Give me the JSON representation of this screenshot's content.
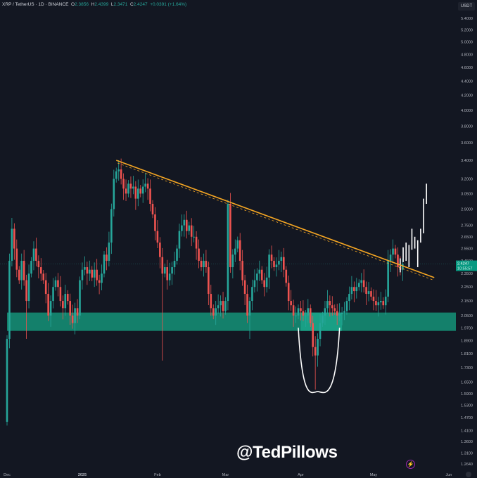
{
  "header": {
    "symbol": "XRP / TetherUS · 1D · BINANCE",
    "o_label": "O",
    "o": "2.3856",
    "h_label": "H",
    "h": "2.4399",
    "l_label": "L",
    "l": "2.3471",
    "c_label": "C",
    "c": "2.4247",
    "change": "+0.0391 (+1.64%)"
  },
  "currency": "USDT",
  "watermark": "@TedPillows",
  "colors": {
    "background": "#131722",
    "up": "#26a69a",
    "down": "#ef5350",
    "trendline": "#f5a623",
    "zone": "#14806b",
    "zone_highlight": "#1aa58a",
    "projection": "#ffffff",
    "price_label": "#089981"
  },
  "chart_data": {
    "type": "candlestick",
    "title": "",
    "y_scale": "log",
    "ylim": [
      1.264,
      5.4
    ],
    "xlim": [
      "2024-12-01",
      "2025-06-01"
    ],
    "grid": false,
    "y_ticks": [
      "5.4000",
      "5.2000",
      "5.0000",
      "4.8000",
      "4.6000",
      "4.4000",
      "4.2000",
      "4.0000",
      "3.8000",
      "3.6000",
      "3.4000",
      "3.2000",
      "3.0500",
      "2.9000",
      "2.7500",
      "2.6500",
      "2.5500",
      "2.4500",
      "2.3500",
      "2.2500",
      "2.1500",
      "2.0500",
      "1.9700",
      "1.8900",
      "1.8100",
      "1.7300",
      "1.6500",
      "1.5900",
      "1.5300",
      "1.4700",
      "1.4100",
      "1.3600",
      "1.3100",
      "1.2640"
    ],
    "x_ticks": [
      {
        "label": "Dec",
        "date": "2024-12-01"
      },
      {
        "label": "2025",
        "date": "2025-01-01"
      },
      {
        "label": "Feb",
        "date": "2025-02-01"
      },
      {
        "label": "Mar",
        "date": "2025-03-01"
      },
      {
        "label": "Apr",
        "date": "2025-04-01"
      },
      {
        "label": "May",
        "date": "2025-05-01"
      },
      {
        "label": "Jun",
        "date": "2025-06-01"
      }
    ],
    "first_date": "2024-12-01",
    "first_open": 1.45,
    "closes": [
      1.9,
      2.45,
      2.72,
      2.55,
      2.38,
      2.3,
      2.45,
      2.3,
      2.15,
      2.35,
      2.45,
      2.55,
      2.45,
      2.4,
      2.35,
      2.3,
      2.2,
      2.05,
      2.15,
      2.25,
      2.3,
      2.25,
      2.15,
      2.1,
      2.2,
      2.15,
      2.05,
      2.0,
      2.1,
      2.05,
      2.3,
      2.38,
      2.4,
      2.35,
      2.38,
      2.32,
      2.38,
      2.3,
      2.28,
      2.35,
      2.5,
      2.45,
      2.6,
      2.9,
      3.2,
      3.28,
      3.3,
      3.2,
      3.1,
      3.05,
      3.15,
      3.1,
      3.12,
      3.0,
      3.1,
      3.05,
      3.12,
      3.15,
      3.1,
      2.95,
      2.85,
      2.7,
      2.6,
      2.48,
      2.35,
      2.4,
      2.3,
      2.35,
      2.4,
      2.45,
      2.55,
      2.7,
      2.75,
      2.8,
      2.7,
      2.75,
      2.65,
      2.65,
      2.55,
      2.45,
      2.4,
      2.45,
      2.4,
      2.2,
      2.1,
      2.05,
      2.1,
      2.12,
      2.15,
      2.08,
      2.15,
      2.95,
      2.4,
      2.5,
      2.55,
      2.62,
      2.45,
      2.3,
      2.2,
      2.05,
      2.15,
      2.25,
      2.3,
      2.35,
      2.38,
      2.3,
      2.25,
      2.32,
      2.5,
      2.45,
      2.4,
      2.42,
      2.45,
      2.48,
      2.38,
      2.28,
      2.15,
      2.12,
      2.05,
      2.05,
      2.1,
      2.08,
      2.05,
      2.05,
      2.1,
      2.0,
      1.85,
      1.8,
      1.9,
      2.0,
      2.05,
      2.1,
      2.15,
      2.12,
      2.1,
      2.08,
      2.05,
      2.06,
      2.07,
      2.08,
      2.15,
      2.2,
      2.25,
      2.22,
      2.25,
      2.28,
      2.3,
      2.25,
      2.2,
      2.22,
      2.18,
      2.15,
      2.12,
      2.14,
      2.15,
      2.12,
      2.18,
      2.45,
      2.5,
      2.55,
      2.5,
      2.4,
      2.38,
      2.4247
    ],
    "notable_lows": [
      {
        "date": "2025-02-03",
        "low": 1.77
      },
      {
        "date": "2025-04-07",
        "low": 1.61
      },
      {
        "date": "2024-12-09",
        "low": 1.9
      },
      {
        "date": "2025-03-11",
        "low": 1.9
      }
    ],
    "notable_highs": [
      {
        "date": "2025-01-16",
        "high": 3.4
      },
      {
        "date": "2025-03-02",
        "high": 2.99
      }
    ],
    "last_price": "2.4247",
    "countdown": "10:55:57",
    "annotations": {
      "trendline": {
        "from": {
          "date": "2025-01-15",
          "price": 3.4
        },
        "to": {
          "date": "2025-05-26",
          "price": 2.32
        }
      },
      "support_zone": {
        "from": "2024-12-01",
        "low": 1.95,
        "high": 2.07
      },
      "zone_highlight": {
        "from": "2025-04-01",
        "to": "2025-04-18"
      },
      "cup_curve": {
        "from": {
          "date": "2025-03-31",
          "price": 1.97
        },
        "bottom": {
          "date": "2025-04-08",
          "price": 1.6
        },
        "to": {
          "date": "2025-04-17",
          "price": 1.97
        }
      },
      "projection_bars": [
        [
          2.36,
          2.47
        ],
        [
          2.44,
          2.56
        ],
        [
          2.45,
          2.6
        ],
        [
          2.4,
          2.58
        ],
        [
          2.54,
          2.72
        ],
        [
          2.55,
          2.65
        ],
        [
          2.4,
          2.62
        ],
        [
          2.6,
          2.72
        ],
        [
          2.68,
          3.0
        ],
        [
          2.95,
          3.15
        ]
      ]
    }
  }
}
